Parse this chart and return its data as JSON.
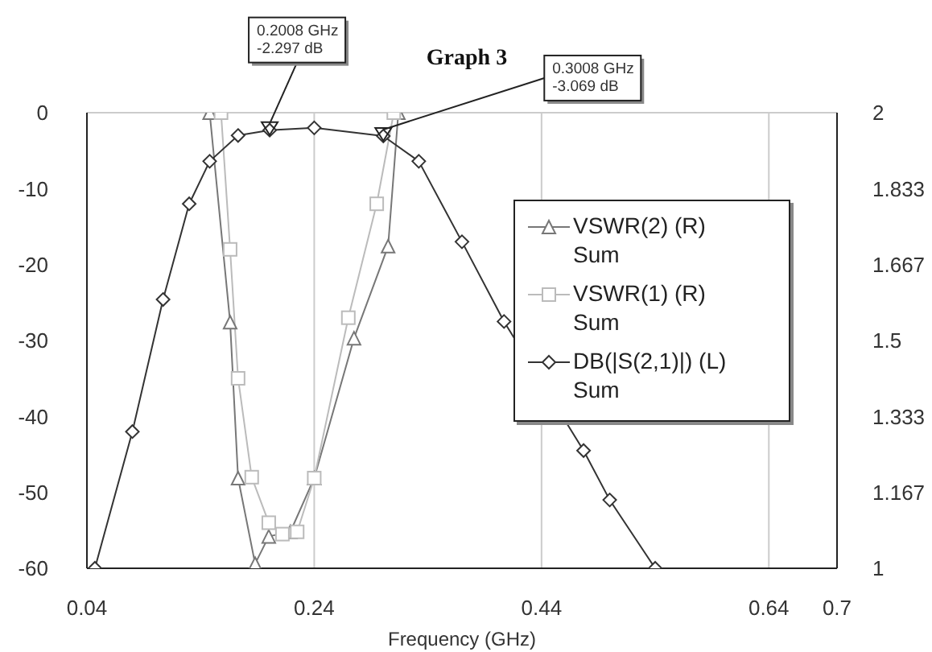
{
  "chart_data": {
    "type": "line",
    "title": "Graph 3",
    "xlabel": "Frequency (GHz)",
    "xlim": [
      0.04,
      0.7
    ],
    "xticks": [
      0.04,
      0.24,
      0.44,
      0.64,
      0.7
    ],
    "ylim": [
      -60,
      0
    ],
    "yticks": [
      0,
      -10,
      -20,
      -30,
      -40,
      -50,
      -60
    ],
    "y2lim": [
      1,
      2
    ],
    "y2ticks": [
      1,
      1.167,
      1.333,
      1.5,
      1.667,
      1.833,
      2
    ],
    "grid": true,
    "legend": "right",
    "line_style": "solid",
    "annotations": [
      {
        "text": "0.2008 GHz\n-2.297 dB",
        "x": 0.2008,
        "y": -2.297
      },
      {
        "text": "0.3008 GHz\n-3.069 dB",
        "x": 0.3008,
        "y": -3.069
      }
    ],
    "series": [
      {
        "name": "VSWR(2) (R)\nSum",
        "color": "#777777",
        "axis": "y2",
        "marker": "triangle",
        "x": [
          0.148,
          0.166,
          0.173,
          0.188,
          0.2,
          0.219,
          0.24,
          0.275,
          0.305,
          0.314
        ],
        "values": [
          2,
          1.54,
          1.198,
          1.01,
          1.07,
          1.08,
          1.198,
          1.505,
          1.707,
          2
        ]
      },
      {
        "name": "VSWR(1) (R)\nSum",
        "color": "#bbbbbb",
        "axis": "y2",
        "marker": "square",
        "x": [
          0.158,
          0.166,
          0.173,
          0.185,
          0.2,
          0.212,
          0.225,
          0.24,
          0.27,
          0.295,
          0.31
        ],
        "values": [
          2,
          1.7,
          1.417,
          1.2,
          1.1,
          1.075,
          1.08,
          1.198,
          1.55,
          1.8,
          2
        ]
      },
      {
        "name": "DB(|S(2,1)|) (L)\nSum",
        "color": "#333333",
        "marker": "diamond",
        "x": [
          0.047,
          0.08,
          0.107,
          0.13,
          0.148,
          0.173,
          0.2008,
          0.24,
          0.3008,
          0.332,
          0.37,
          0.407,
          0.477,
          0.5,
          0.54
        ],
        "values": [
          -60,
          -42,
          -24.6,
          -12,
          -6.4,
          -3,
          -2.297,
          -2,
          -3.069,
          -6.4,
          -17,
          -27.5,
          -44.5,
          -51,
          -60
        ]
      }
    ]
  }
}
